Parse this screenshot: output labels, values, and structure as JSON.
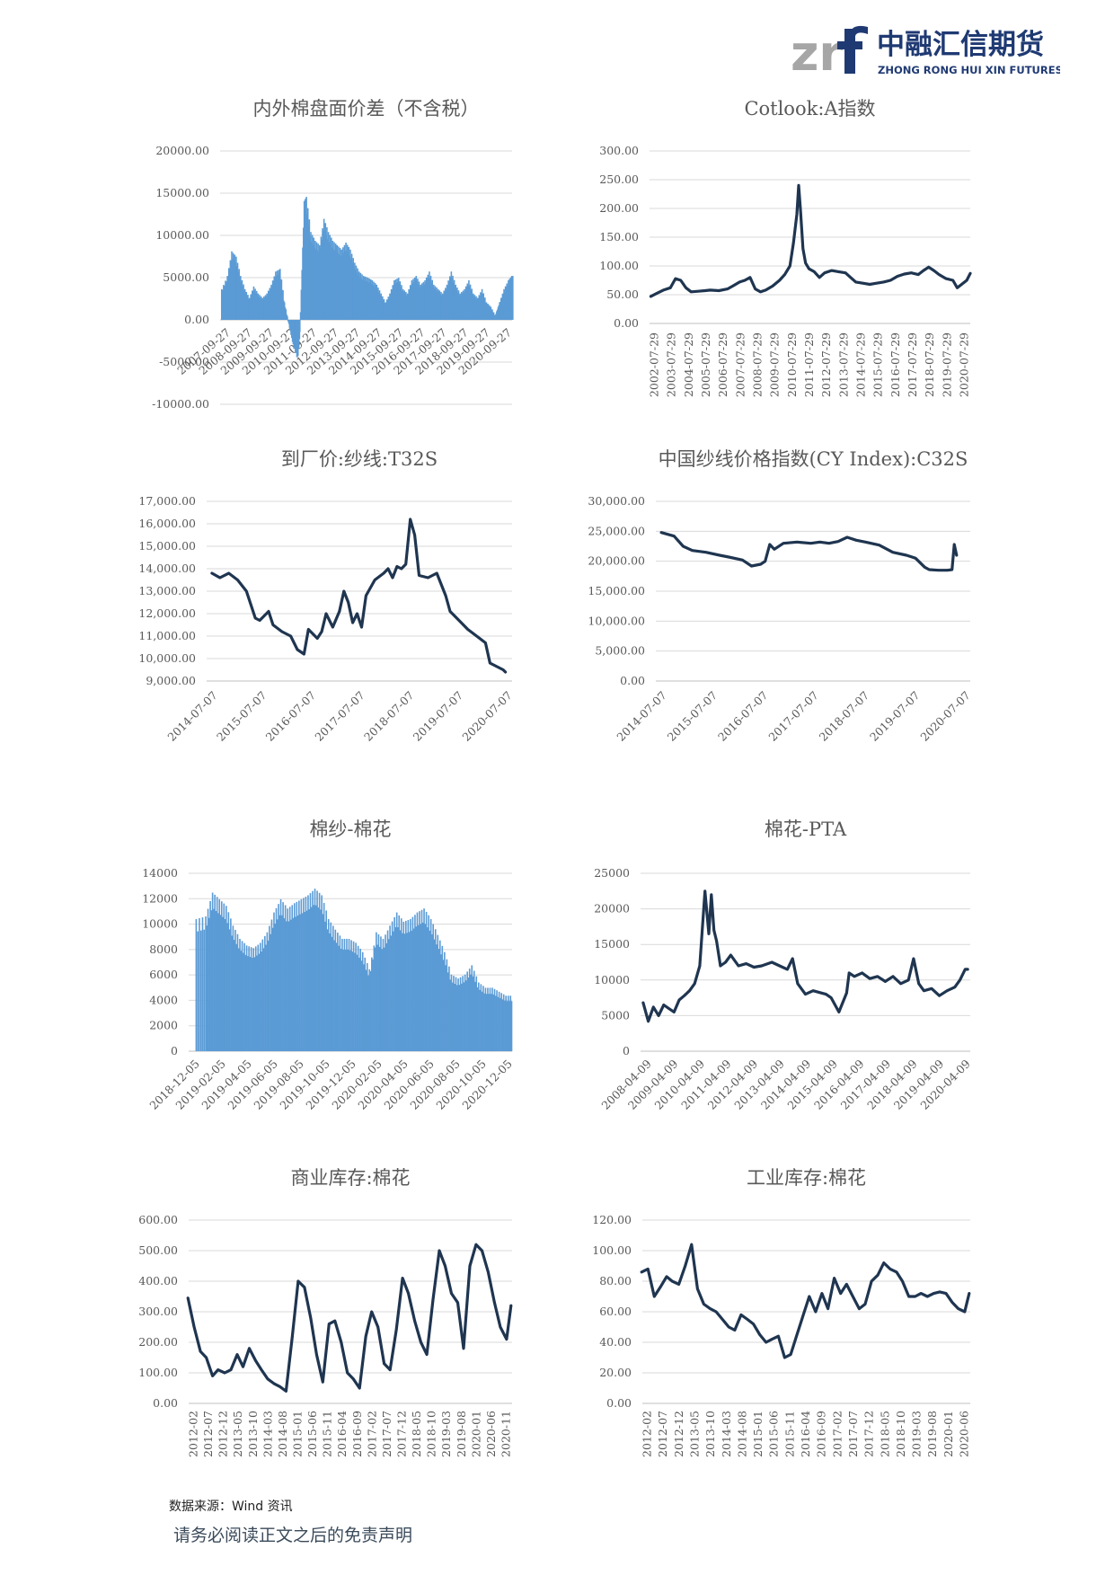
{
  "header": {
    "logo_mark": "zrf",
    "company_cn": "中融汇信期货",
    "company_en": "ZHONG RONG HUI XIN FUTURES"
  },
  "footer": {
    "source": "数据来源：Wind 资讯",
    "disclaimer": "请务必阅读正文之后的免责声明"
  },
  "colors": {
    "line": "#1f3550",
    "bar": "#5b9bd5",
    "grid": "#d9d9d9",
    "text": "#595959",
    "logo_grey": "#a6a6a6",
    "logo_blue": "#1f3a73"
  },
  "chart_data": [
    {
      "id": "c1",
      "type": "bar",
      "title": "内外棉盘面价差（不含税）",
      "y_ticks": [
        "20000.00",
        "15000.00",
        "10000.00",
        "5000.00",
        "0.00",
        "-5000.00",
        "-10000.00"
      ],
      "ylim": [
        -10000,
        20000
      ],
      "x_ticks": [
        "2007-09-27",
        "2008-09-27",
        "2009-09-27",
        "2010-09-27",
        "2011-09-27",
        "2012-09-27",
        "2013-09-27",
        "2014-09-27",
        "2015-09-27",
        "2016-09-27",
        "2017-09-27",
        "2018-09-27",
        "2019-09-27",
        "2020-09-27"
      ],
      "xlim": [
        2007.7,
        2021.0
      ],
      "x": [
        2007.74,
        2008.0,
        2008.2,
        2008.4,
        2008.6,
        2008.8,
        2009.0,
        2009.2,
        2009.4,
        2009.6,
        2009.8,
        2010.0,
        2010.2,
        2010.4,
        2010.6,
        2010.8,
        2011.0,
        2011.2,
        2011.3,
        2011.5,
        2011.6,
        2011.8,
        2012.0,
        2012.2,
        2012.4,
        2012.6,
        2012.8,
        2013.0,
        2013.2,
        2013.4,
        2013.6,
        2013.8,
        2014.0,
        2014.2,
        2014.4,
        2014.6,
        2014.8,
        2015.0,
        2015.2,
        2015.4,
        2015.6,
        2015.8,
        2016.0,
        2016.2,
        2016.4,
        2016.6,
        2016.8,
        2017.0,
        2017.2,
        2017.4,
        2017.6,
        2017.8,
        2018.0,
        2018.2,
        2018.4,
        2018.6,
        2018.8,
        2019.0,
        2019.2,
        2019.4,
        2019.6,
        2019.8,
        2020.0,
        2020.2,
        2020.4,
        2020.6,
        2020.8,
        2020.95
      ],
      "values": [
        3500,
        5000,
        7800,
        7200,
        5000,
        3500,
        2500,
        3800,
        3000,
        2500,
        3000,
        4000,
        5500,
        5800,
        2000,
        -500,
        -3000,
        -4500,
        -1500,
        13500,
        14000,
        10000,
        9000,
        8500,
        11500,
        10000,
        9000,
        8500,
        8000,
        8800,
        8000,
        6500,
        5500,
        5000,
        4800,
        4500,
        4000,
        3000,
        2000,
        3000,
        4500,
        4800,
        3500,
        3000,
        4500,
        5000,
        4000,
        4500,
        5500,
        4000,
        3500,
        3000,
        4000,
        5500,
        4000,
        3000,
        3500,
        4500,
        3000,
        2500,
        3500,
        2000,
        1500,
        500,
        2000,
        3500,
        4500,
        5000
      ]
    },
    {
      "id": "c2",
      "type": "line",
      "title": "Cotlook:A指数",
      "y_ticks": [
        "300.00",
        "250.00",
        "200.00",
        "150.00",
        "100.00",
        "50.00",
        "0.00"
      ],
      "ylim": [
        0,
        300
      ],
      "x_ticks": [
        "2002-07-29",
        "2003-07-29",
        "2004-07-29",
        "2005-07-29",
        "2006-07-29",
        "2007-07-29",
        "2008-07-29",
        "2009-07-29",
        "2010-07-29",
        "2011-07-29",
        "2012-07-29",
        "2013-07-29",
        "2014-07-29",
        "2015-07-29",
        "2016-07-29",
        "2017-07-29",
        "2018-07-29",
        "2019-07-29",
        "2020-07-29"
      ],
      "xlim": [
        2002.5,
        2021.0
      ],
      "x": [
        2002.57,
        2002.9,
        2003.3,
        2003.7,
        2004.0,
        2004.3,
        2004.6,
        2004.9,
        2005.3,
        2005.7,
        2006.0,
        2006.5,
        2007.0,
        2007.3,
        2007.7,
        2008.0,
        2008.3,
        2008.6,
        2008.9,
        2009.2,
        2009.6,
        2010.0,
        2010.3,
        2010.6,
        2010.8,
        2011.0,
        2011.1,
        2011.2,
        2011.35,
        2011.5,
        2011.7,
        2012.0,
        2012.3,
        2012.6,
        2013.0,
        2013.4,
        2013.8,
        2014.1,
        2014.4,
        2014.8,
        2015.2,
        2015.6,
        2016.0,
        2016.4,
        2016.8,
        2017.2,
        2017.6,
        2018.0,
        2018.3,
        2018.6,
        2018.9,
        2019.2,
        2019.6,
        2020.0,
        2020.25,
        2020.5,
        2020.8,
        2021.0
      ],
      "values": [
        47,
        52,
        58,
        62,
        78,
        75,
        62,
        55,
        56,
        57,
        58,
        57,
        60,
        65,
        72,
        75,
        80,
        60,
        55,
        58,
        65,
        75,
        85,
        100,
        140,
        190,
        240,
        200,
        130,
        105,
        95,
        90,
        80,
        88,
        92,
        90,
        88,
        80,
        72,
        70,
        68,
        70,
        72,
        75,
        82,
        86,
        88,
        85,
        92,
        98,
        92,
        85,
        78,
        75,
        62,
        68,
        75,
        87
      ]
    },
    {
      "id": "c3",
      "type": "line",
      "title": "到厂价:纱线:T32S",
      "y_ticks": [
        "17,000.00",
        "16,000.00",
        "15,000.00",
        "14,000.00",
        "13,000.00",
        "12,000.00",
        "11,000.00",
        "10,000.00",
        "9,000.00"
      ],
      "ylim": [
        9000,
        17000
      ],
      "x_ticks": [
        "2014-07-07",
        "2015-07-07",
        "2016-07-07",
        "2017-07-07",
        "2018-07-07",
        "2019-07-07",
        "2020-07-07"
      ],
      "xlim": [
        2014.4,
        2021.3
      ],
      "x": [
        2014.52,
        2014.7,
        2014.9,
        2015.1,
        2015.3,
        2015.5,
        2015.6,
        2015.8,
        2015.9,
        2016.1,
        2016.3,
        2016.45,
        2016.6,
        2016.7,
        2016.9,
        2017.0,
        2017.1,
        2017.25,
        2017.4,
        2017.5,
        2017.6,
        2017.7,
        2017.8,
        2017.9,
        2018.0,
        2018.2,
        2018.4,
        2018.5,
        2018.6,
        2018.7,
        2018.8,
        2018.9,
        2019.0,
        2019.1,
        2019.2,
        2019.4,
        2019.6,
        2019.8,
        2019.9,
        2020.1,
        2020.3,
        2020.5,
        2020.7,
        2020.8,
        2020.9,
        2021.0,
        2021.1,
        2021.15
      ],
      "values": [
        13800,
        13600,
        13800,
        13500,
        13000,
        11800,
        11700,
        12100,
        11500,
        11200,
        11000,
        10400,
        10200,
        11300,
        10900,
        11200,
        12000,
        11400,
        12100,
        13000,
        12500,
        11600,
        12000,
        11400,
        12800,
        13500,
        13800,
        14000,
        13600,
        14100,
        14000,
        14200,
        16200,
        15500,
        13700,
        13600,
        13800,
        12800,
        12100,
        11700,
        11300,
        11000,
        10700,
        9800,
        9700,
        9600,
        9500,
        9400
      ]
    },
    {
      "id": "c4",
      "type": "line",
      "title": "中国纱线价格指数(CY Index):C32S",
      "y_ticks": [
        "30,000.00",
        "25,000.00",
        "20,000.00",
        "15,000.00",
        "10,000.00",
        "5,000.00",
        "0.00"
      ],
      "ylim": [
        0,
        30000
      ],
      "x_ticks": [
        "2014-07-07",
        "2015-07-07",
        "2016-07-07",
        "2017-07-07",
        "2018-07-07",
        "2019-07-07",
        "2020-07-07"
      ],
      "xlim": [
        2014.4,
        2021.3
      ],
      "x": [
        2014.52,
        2014.8,
        2015.0,
        2015.2,
        2015.5,
        2015.8,
        2016.0,
        2016.3,
        2016.5,
        2016.7,
        2016.8,
        2016.9,
        2017.0,
        2017.2,
        2017.5,
        2017.8,
        2018.0,
        2018.2,
        2018.4,
        2018.6,
        2018.8,
        2019.0,
        2019.3,
        2019.6,
        2019.9,
        2020.1,
        2020.3,
        2020.4,
        2020.6,
        2020.8,
        2020.9,
        2020.95,
        2021.0
      ],
      "values": [
        24800,
        24200,
        22500,
        21800,
        21500,
        21000,
        20700,
        20200,
        19200,
        19500,
        20000,
        22800,
        22000,
        23000,
        23200,
        23000,
        23200,
        23000,
        23300,
        24000,
        23500,
        23200,
        22700,
        21500,
        21000,
        20500,
        19000,
        18600,
        18500,
        18500,
        18600,
        22800,
        21000
      ]
    },
    {
      "id": "c5",
      "type": "bar",
      "title": "棉纱-棉花",
      "y_ticks": [
        "14000",
        "12000",
        "10000",
        "8000",
        "6000",
        "4000",
        "2000",
        "0"
      ],
      "ylim": [
        0,
        14000
      ],
      "x_ticks": [
        "2018-12-05",
        "2019-02-05",
        "2019-04-05",
        "2019-06-05",
        "2019-08-05",
        "2019-10-05",
        "2019-12-05",
        "2020-02-05",
        "2020-04-05",
        "2020-06-05",
        "2020-08-05",
        "2020-10-05",
        "2020-12-05"
      ],
      "xlim": [
        2018.88,
        2021.25
      ],
      "x": [
        2018.93,
        2019.0,
        2019.05,
        2019.1,
        2019.15,
        2019.2,
        2019.25,
        2019.3,
        2019.35,
        2019.4,
        2019.45,
        2019.5,
        2019.55,
        2019.6,
        2019.65,
        2019.7,
        2019.75,
        2019.8,
        2019.85,
        2019.9,
        2019.95,
        2020.0,
        2020.05,
        2020.1,
        2020.15,
        2020.2,
        2020.25,
        2020.3,
        2020.35,
        2020.4,
        2020.45,
        2020.5,
        2020.55,
        2020.6,
        2020.65,
        2020.7,
        2020.75,
        2020.8,
        2020.85,
        2020.9,
        2020.95,
        2021.0,
        2021.05,
        2021.1,
        2021.15,
        2021.2
      ],
      "values": [
        10000,
        10200,
        12000,
        11500,
        11000,
        9500,
        8500,
        8000,
        7800,
        8200,
        9000,
        10500,
        11500,
        10800,
        11200,
        11500,
        11800,
        12300,
        11800,
        10000,
        9200,
        8500,
        8500,
        8200,
        7500,
        6200,
        9000,
        8500,
        9500,
        10500,
        9800,
        10000,
        10500,
        10800,
        10000,
        8800,
        7500,
        5800,
        5500,
        5800,
        6500,
        5200,
        4800,
        4800,
        4500,
        4200
      ]
    },
    {
      "id": "c6",
      "type": "line",
      "title": "棉花-PTA",
      "y_ticks": [
        "25000",
        "20000",
        "15000",
        "10000",
        "5000",
        "0"
      ],
      "ylim": [
        0,
        25000
      ],
      "x_ticks": [
        "2008-04-09",
        "2009-04-09",
        "2010-04-09",
        "2011-04-09",
        "2012-04-09",
        "2013-04-09",
        "2014-04-09",
        "2015-04-09",
        "2016-04-09",
        "2017-04-09",
        "2018-04-09",
        "2019-04-09",
        "2020-04-09"
      ],
      "xlim": [
        2007.9,
        2020.7
      ],
      "x": [
        2008.0,
        2008.2,
        2008.4,
        2008.6,
        2008.8,
        2009.0,
        2009.2,
        2009.4,
        2009.6,
        2009.8,
        2010.0,
        2010.2,
        2010.4,
        2010.55,
        2010.65,
        2010.75,
        2010.85,
        2011.0,
        2011.2,
        2011.4,
        2011.7,
        2012.0,
        2012.3,
        2012.6,
        2013.0,
        2013.3,
        2013.6,
        2013.8,
        2014.0,
        2014.3,
        2014.6,
        2014.9,
        2015.1,
        2015.3,
        2015.6,
        2015.9,
        2016.0,
        2016.2,
        2016.5,
        2016.8,
        2017.1,
        2017.4,
        2017.7,
        2018.0,
        2018.3,
        2018.5,
        2018.7,
        2018.9,
        2019.2,
        2019.5,
        2019.8,
        2020.1,
        2020.3,
        2020.5,
        2020.6
      ],
      "values": [
        6800,
        4200,
        6200,
        5000,
        6500,
        6000,
        5500,
        7200,
        7800,
        8500,
        9500,
        12000,
        22500,
        16500,
        22000,
        17000,
        15500,
        12000,
        12500,
        13500,
        12000,
        12300,
        11800,
        12000,
        12500,
        12000,
        11500,
        13000,
        9500,
        8000,
        8500,
        8200,
        8000,
        7500,
        5500,
        8200,
        11000,
        10500,
        11000,
        10200,
        10500,
        9800,
        10500,
        9500,
        10000,
        13000,
        9500,
        8500,
        8800,
        7800,
        8500,
        9000,
        10000,
        11500,
        11500
      ]
    },
    {
      "id": "c7",
      "type": "line",
      "title": "商业库存:棉花",
      "y_ticks": [
        "600.00",
        "500.00",
        "400.00",
        "300.00",
        "200.00",
        "100.00",
        "0.00"
      ],
      "ylim": [
        0,
        600
      ],
      "x_ticks": [
        "2012-02",
        "2012-07",
        "2012-12",
        "2013-05",
        "2013-10",
        "2014-03",
        "2014-08",
        "2015-01",
        "2015-06",
        "2015-11",
        "2016-04",
        "2016-09",
        "2017-02",
        "2017-07",
        "2017-12",
        "2018-05",
        "2018-10",
        "2019-03",
        "2019-08",
        "2020-01",
        "2020-06",
        "2020-11"
      ],
      "xlim": [
        2012.1,
        2020.9
      ],
      "x": [
        2012.08,
        2012.25,
        2012.42,
        2012.58,
        2012.75,
        2012.9,
        2013.08,
        2013.25,
        2013.42,
        2013.58,
        2013.75,
        2013.92,
        2014.08,
        2014.25,
        2014.42,
        2014.58,
        2014.75,
        2014.92,
        2015.08,
        2015.25,
        2015.42,
        2015.58,
        2015.75,
        2015.92,
        2016.08,
        2016.25,
        2016.42,
        2016.58,
        2016.75,
        2016.92,
        2017.08,
        2017.25,
        2017.42,
        2017.58,
        2017.75,
        2017.92,
        2018.08,
        2018.25,
        2018.42,
        2018.58,
        2018.75,
        2018.92,
        2019.08,
        2019.25,
        2019.42,
        2019.58,
        2019.75,
        2019.92,
        2020.08,
        2020.25,
        2020.42,
        2020.58,
        2020.75,
        2020.87
      ],
      "values": [
        345,
        250,
        170,
        150,
        90,
        110,
        100,
        110,
        160,
        120,
        180,
        140,
        110,
        80,
        65,
        55,
        40,
        220,
        400,
        380,
        280,
        160,
        70,
        260,
        270,
        200,
        100,
        80,
        50,
        220,
        300,
        250,
        130,
        110,
        240,
        410,
        360,
        270,
        200,
        160,
        340,
        500,
        450,
        360,
        330,
        180,
        450,
        520,
        500,
        430,
        330,
        250,
        210,
        320
      ]
    },
    {
      "id": "c8",
      "type": "line",
      "title": "工业库存:棉花",
      "y_ticks": [
        "120.00",
        "100.00",
        "80.00",
        "60.00",
        "40.00",
        "20.00",
        "0.00"
      ],
      "ylim": [
        0,
        120
      ],
      "x_ticks": [
        "2012-02",
        "2012-07",
        "2012-12",
        "2013-05",
        "2013-10",
        "2014-03",
        "2014-08",
        "2015-01",
        "2015-06",
        "2015-11",
        "2016-04",
        "2016-09",
        "2017-02",
        "2017-07",
        "2017-12",
        "2018-05",
        "2018-10",
        "2019-03",
        "2019-08",
        "2020-01",
        "2020-06"
      ],
      "xlim": [
        2012.1,
        2020.9
      ],
      "x": [
        2012.08,
        2012.25,
        2012.42,
        2012.58,
        2012.75,
        2012.9,
        2013.08,
        2013.25,
        2013.42,
        2013.58,
        2013.75,
        2013.92,
        2014.08,
        2014.25,
        2014.42,
        2014.58,
        2014.75,
        2014.92,
        2015.08,
        2015.25,
        2015.42,
        2015.58,
        2015.75,
        2015.92,
        2016.08,
        2016.25,
        2016.42,
        2016.58,
        2016.75,
        2016.92,
        2017.08,
        2017.25,
        2017.42,
        2017.58,
        2017.75,
        2017.92,
        2018.08,
        2018.25,
        2018.42,
        2018.58,
        2018.75,
        2018.92,
        2019.08,
        2019.25,
        2019.42,
        2019.58,
        2019.75,
        2019.92,
        2020.08,
        2020.25,
        2020.42,
        2020.58,
        2020.75,
        2020.87
      ],
      "values": [
        86,
        88,
        70,
        76,
        83,
        80,
        78,
        90,
        104,
        75,
        65,
        62,
        60,
        55,
        50,
        48,
        58,
        55,
        52,
        45,
        40,
        42,
        44,
        30,
        32,
        45,
        58,
        70,
        60,
        72,
        62,
        82,
        72,
        78,
        70,
        62,
        65,
        80,
        84,
        92,
        88,
        86,
        80,
        70,
        70,
        72,
        70,
        72,
        73,
        72,
        66,
        62,
        60,
        72
      ]
    }
  ]
}
